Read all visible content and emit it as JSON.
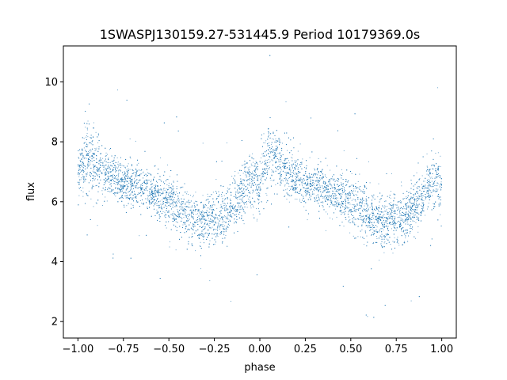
{
  "chart_data": {
    "type": "scatter",
    "title": "1SWASPJ130159.27-531445.9 Period 10179369.0s",
    "xlabel": "phase",
    "ylabel": "flux",
    "xlim": [
      -1.08,
      1.08
    ],
    "ylim": [
      1.45,
      11.2
    ],
    "xticks": [
      -1.0,
      -0.75,
      -0.5,
      -0.25,
      0.0,
      0.25,
      0.5,
      0.75,
      1.0
    ],
    "xtick_labels": [
      "−1.00",
      "−0.75",
      "−0.50",
      "−0.25",
      "0.00",
      "0.25",
      "0.50",
      "0.75",
      "1.00"
    ],
    "yticks": [
      2,
      4,
      6,
      8,
      10
    ],
    "ytick_labels": [
      "2",
      "4",
      "6",
      "8",
      "10"
    ],
    "grid": false,
    "marker_color": "#1f77b4",
    "series": [
      {
        "phase_range": [
          -1.0,
          1.0
        ],
        "trend": {
          "phase": [
            0.0,
            0.05,
            0.1,
            0.15,
            0.2,
            0.25,
            0.3,
            0.35,
            0.4,
            0.45,
            0.5,
            0.55,
            0.6,
            0.65,
            0.7,
            0.75,
            0.8,
            0.85,
            0.9,
            0.95,
            1.0
          ],
          "flux": [
            6.9,
            7.6,
            7.3,
            6.9,
            6.8,
            6.6,
            6.6,
            6.5,
            6.3,
            6.2,
            6.0,
            5.8,
            5.5,
            5.4,
            5.3,
            5.4,
            5.5,
            5.8,
            6.3,
            6.7,
            6.5
          ]
        },
        "spread": {
          "phase": [
            0.0,
            0.05,
            0.1,
            0.2,
            0.3,
            0.4,
            0.5,
            0.6,
            0.7,
            0.8,
            0.9,
            0.95,
            1.0
          ],
          "flux": [
            0.6,
            0.8,
            0.7,
            0.45,
            0.5,
            0.45,
            0.6,
            0.6,
            0.55,
            0.55,
            0.6,
            0.7,
            0.6
          ]
        }
      }
    ]
  }
}
